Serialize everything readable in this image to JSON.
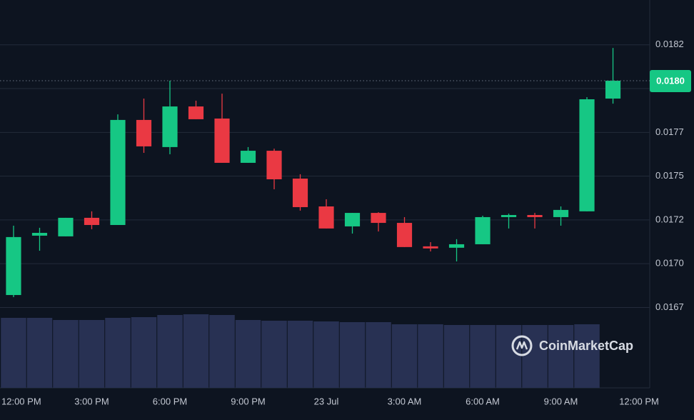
{
  "chart_data": {
    "type": "candlestick",
    "watermark": "CoinMarketCap",
    "x": [
      0,
      1,
      2,
      3,
      4,
      5,
      6,
      7,
      8,
      9,
      10,
      11,
      12,
      13,
      14,
      15,
      16,
      17,
      18,
      19,
      20,
      21,
      22,
      23
    ],
    "open": [
      0.016821,
      0.01716,
      0.017156,
      0.017262,
      0.017221,
      0.017821,
      0.017666,
      0.017898,
      0.017829,
      0.017576,
      0.017645,
      0.017486,
      0.017327,
      0.017213,
      0.01729,
      0.017233,
      0.017099,
      0.017091,
      0.017111,
      0.017266,
      0.017278,
      0.017266,
      0.017299,
      0.017943
    ],
    "high": [
      0.017217,
      0.017205,
      0.017262,
      0.017299,
      0.017853,
      0.017943,
      0.018045,
      0.017931,
      0.017971,
      0.017666,
      0.017657,
      0.017511,
      0.017368,
      0.01729,
      0.017294,
      0.017266,
      0.017123,
      0.01714,
      0.017274,
      0.017286,
      0.01729,
      0.017327,
      0.017951,
      0.018232
    ],
    "low": [
      0.016809,
      0.017074,
      0.017156,
      0.017197,
      0.017221,
      0.017633,
      0.017625,
      0.017825,
      0.017576,
      0.017576,
      0.017425,
      0.017303,
      0.017201,
      0.017172,
      0.017184,
      0.017095,
      0.01707,
      0.017013,
      0.017111,
      0.017201,
      0.017201,
      0.017217,
      0.017299,
      0.017914
    ],
    "close": [
      0.017152,
      0.017176,
      0.017262,
      0.017221,
      0.017821,
      0.01767,
      0.017898,
      0.017825,
      0.017576,
      0.017645,
      0.017482,
      0.017323,
      0.017201,
      0.01729,
      0.017233,
      0.017095,
      0.017087,
      0.017111,
      0.017266,
      0.017278,
      0.017266,
      0.017307,
      0.017939,
      0.018045
    ],
    "volume": [
      98,
      98,
      95,
      95,
      98,
      99,
      102,
      103,
      102,
      95,
      94,
      94,
      93,
      92,
      92,
      89,
      89,
      88,
      88,
      88,
      88,
      88,
      89,
      null
    ],
    "volume_ylim": [
      0,
      103
    ],
    "up_color": "#16c784",
    "down_color": "#ea3943",
    "volume_color": "#283153",
    "last_price": {
      "value": 0.018045,
      "label": "0.0180"
    },
    "xlim": [
      -0.52,
      24.41
    ],
    "xticks": [
      {
        "value": 0,
        "label": "12:00 PM"
      },
      {
        "value": 3,
        "label": "3:00 PM"
      },
      {
        "value": 6,
        "label": "6:00 PM"
      },
      {
        "value": 9,
        "label": "9:00 PM"
      },
      {
        "value": 12,
        "label": "23 Jul"
      },
      {
        "value": 15,
        "label": "3:00 AM"
      },
      {
        "value": 18,
        "label": "6:00 AM"
      },
      {
        "value": 21,
        "label": "9:00 AM"
      },
      {
        "value": 24,
        "label": "12:00 PM"
      }
    ],
    "ylim": [
      0.016711,
      0.018506
    ],
    "yticks": [
      {
        "value": 0.01825,
        "label": "0.0182"
      },
      {
        "value": 0.018,
        "label": "0.0180"
      },
      {
        "value": 0.01775,
        "label": "0.0177"
      },
      0.0175,
      {
        "value": 0.01725,
        "label": "0.0172"
      },
      {
        "value": 0.017,
        "label": "0.0170"
      },
      {
        "value": 0.01675,
        "label": "0.0167"
      }
    ],
    "grid": true
  }
}
